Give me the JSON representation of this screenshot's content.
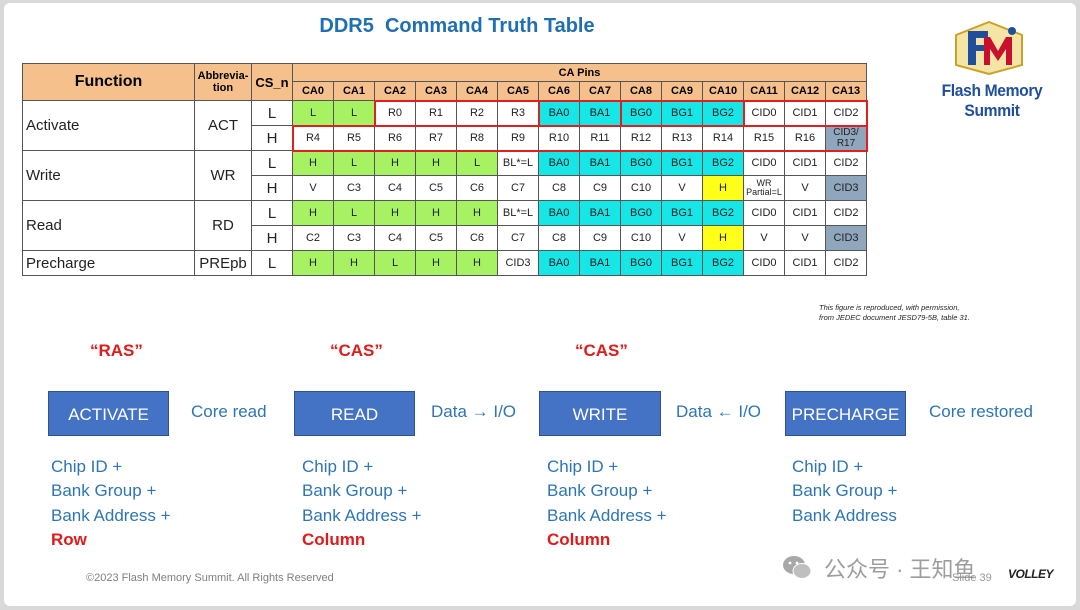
{
  "title": "DDR5  Command Truth Table",
  "logo_text": "Flash Memory Summit",
  "logo_mark_letters": "FMS",
  "table": {
    "header_function": "Function",
    "header_abbreviation": "Abbrevia-\ntion",
    "header_cs": "CS_n",
    "header_ca_pins": "CA Pins",
    "ca_pins": [
      "CA0",
      "CA1",
      "CA2",
      "CA3",
      "CA4",
      "CA5",
      "CA6",
      "CA7",
      "CA8",
      "CA9",
      "CA10",
      "CA11",
      "CA12",
      "CA13"
    ],
    "groups": [
      {
        "function": "Activate",
        "abbr": "ACT",
        "rows": [
          {
            "cs": "L",
            "cells": [
              [
                "L",
                "g"
              ],
              [
                "L",
                "g"
              ],
              [
                "R0",
                "w"
              ],
              [
                "R1",
                "w"
              ],
              [
                "R2",
                "w"
              ],
              [
                "R3",
                "w"
              ],
              [
                "BA0",
                "c"
              ],
              [
                "BA1",
                "c"
              ],
              [
                "BG0",
                "c"
              ],
              [
                "BG1",
                "c"
              ],
              [
                "BG2",
                "c"
              ],
              [
                "CID0",
                "w"
              ],
              [
                "CID1",
                "w"
              ],
              [
                "CID2",
                "w"
              ]
            ]
          },
          {
            "cs": "H",
            "cells": [
              [
                "R4",
                "w"
              ],
              [
                "R5",
                "w"
              ],
              [
                "R6",
                "w"
              ],
              [
                "R7",
                "w"
              ],
              [
                "R8",
                "w"
              ],
              [
                "R9",
                "w"
              ],
              [
                "R10",
                "w"
              ],
              [
                "R11",
                "w"
              ],
              [
                "R12",
                "w"
              ],
              [
                "R13",
                "w"
              ],
              [
                "R14",
                "w"
              ],
              [
                "R15",
                "w"
              ],
              [
                "R16",
                "w"
              ],
              [
                "CID3/\nR17",
                "s"
              ]
            ]
          }
        ]
      },
      {
        "function": "Write",
        "abbr": "WR",
        "rows": [
          {
            "cs": "L",
            "cells": [
              [
                "H",
                "g"
              ],
              [
                "L",
                "g"
              ],
              [
                "H",
                "g"
              ],
              [
                "H",
                "g"
              ],
              [
                "L",
                "g"
              ],
              [
                "BL*=L",
                "w"
              ],
              [
                "BA0",
                "c"
              ],
              [
                "BA1",
                "c"
              ],
              [
                "BG0",
                "c"
              ],
              [
                "BG1",
                "c"
              ],
              [
                "BG2",
                "c"
              ],
              [
                "CID0",
                "w"
              ],
              [
                "CID1",
                "w"
              ],
              [
                "CID2",
                "w"
              ]
            ]
          },
          {
            "cs": "H",
            "cells": [
              [
                "V",
                "w"
              ],
              [
                "C3",
                "w"
              ],
              [
                "C4",
                "w"
              ],
              [
                "C5",
                "w"
              ],
              [
                "C6",
                "w"
              ],
              [
                "C7",
                "w"
              ],
              [
                "C8",
                "w"
              ],
              [
                "C9",
                "w"
              ],
              [
                "C10",
                "w"
              ],
              [
                "V",
                "w"
              ],
              [
                "H",
                "y"
              ],
              [
                "WR\nPartial=L",
                "w"
              ],
              [
                "V",
                "w"
              ],
              [
                "CID3",
                "s"
              ]
            ]
          }
        ]
      },
      {
        "function": "Read",
        "abbr": "RD",
        "rows": [
          {
            "cs": "L",
            "cells": [
              [
                "H",
                "g"
              ],
              [
                "L",
                "g"
              ],
              [
                "H",
                "g"
              ],
              [
                "H",
                "g"
              ],
              [
                "H",
                "g"
              ],
              [
                "BL*=L",
                "w"
              ],
              [
                "BA0",
                "c"
              ],
              [
                "BA1",
                "c"
              ],
              [
                "BG0",
                "c"
              ],
              [
                "BG1",
                "c"
              ],
              [
                "BG2",
                "c"
              ],
              [
                "CID0",
                "w"
              ],
              [
                "CID1",
                "w"
              ],
              [
                "CID2",
                "w"
              ]
            ]
          },
          {
            "cs": "H",
            "cells": [
              [
                "C2",
                "w"
              ],
              [
                "C3",
                "w"
              ],
              [
                "C4",
                "w"
              ],
              [
                "C5",
                "w"
              ],
              [
                "C6",
                "w"
              ],
              [
                "C7",
                "w"
              ],
              [
                "C8",
                "w"
              ],
              [
                "C9",
                "w"
              ],
              [
                "C10",
                "w"
              ],
              [
                "V",
                "w"
              ],
              [
                "H",
                "y"
              ],
              [
                "V",
                "w"
              ],
              [
                "V",
                "w"
              ],
              [
                "CID3",
                "s"
              ]
            ]
          }
        ]
      },
      {
        "function": "Precharge",
        "abbr": "PREpb",
        "rows": [
          {
            "cs": "L",
            "cells": [
              [
                "H",
                "g"
              ],
              [
                "H",
                "g"
              ],
              [
                "L",
                "g"
              ],
              [
                "H",
                "g"
              ],
              [
                "H",
                "g"
              ],
              [
                "CID3",
                "w"
              ],
              [
                "BA0",
                "c"
              ],
              [
                "BA1",
                "c"
              ],
              [
                "BG0",
                "c"
              ],
              [
                "BG1",
                "c"
              ],
              [
                "BG2",
                "c"
              ],
              [
                "CID0",
                "w"
              ],
              [
                "CID1",
                "w"
              ],
              [
                "CID2",
                "w"
              ]
            ]
          }
        ]
      }
    ]
  },
  "note_line1": "This figure is reproduced, with permission,",
  "note_line2": "from JEDEC document JESD79-5B, table 31.",
  "flow": {
    "labels_top": [
      "“RAS”",
      "“CAS”",
      "“CAS”"
    ],
    "commands": [
      "ACTIVATE",
      "READ",
      "WRITE",
      "PRECHARGE"
    ],
    "between": [
      "Core read",
      "Data → I/O",
      "Data ← I/O",
      "Core restored"
    ],
    "descriptions": [
      {
        "lines": [
          "Chip ID +",
          "Bank Group +",
          "Bank Address +"
        ],
        "emph": "Row"
      },
      {
        "lines": [
          "Chip ID +",
          "Bank Group +",
          "Bank Address +"
        ],
        "emph": "Column"
      },
      {
        "lines": [
          "Chip ID +",
          "Bank Group +",
          "Bank Address +"
        ],
        "emph": "Column"
      },
      {
        "lines": [
          "Chip ID +",
          "Bank Group +",
          "Bank Address"
        ],
        "emph": ""
      }
    ]
  },
  "footer": "©2023 Flash Memory Summit. All Rights Reserved",
  "slide_number": "Slide 39",
  "watermark": "公众号 · 王知鱼",
  "corner_logo": "VOLLEY",
  "colors": {
    "header_orange": "#f6c08d",
    "green": "#a6f262",
    "cyan": "#16e6e6",
    "yellow": "#ffff1a",
    "slate": "#8fa6bd",
    "red_box": "#e02020",
    "title_blue": "#1f6fb2",
    "command_box": "#4472c4",
    "text_blue": "#2e75b6",
    "accent_red": "#e01b1b"
  }
}
